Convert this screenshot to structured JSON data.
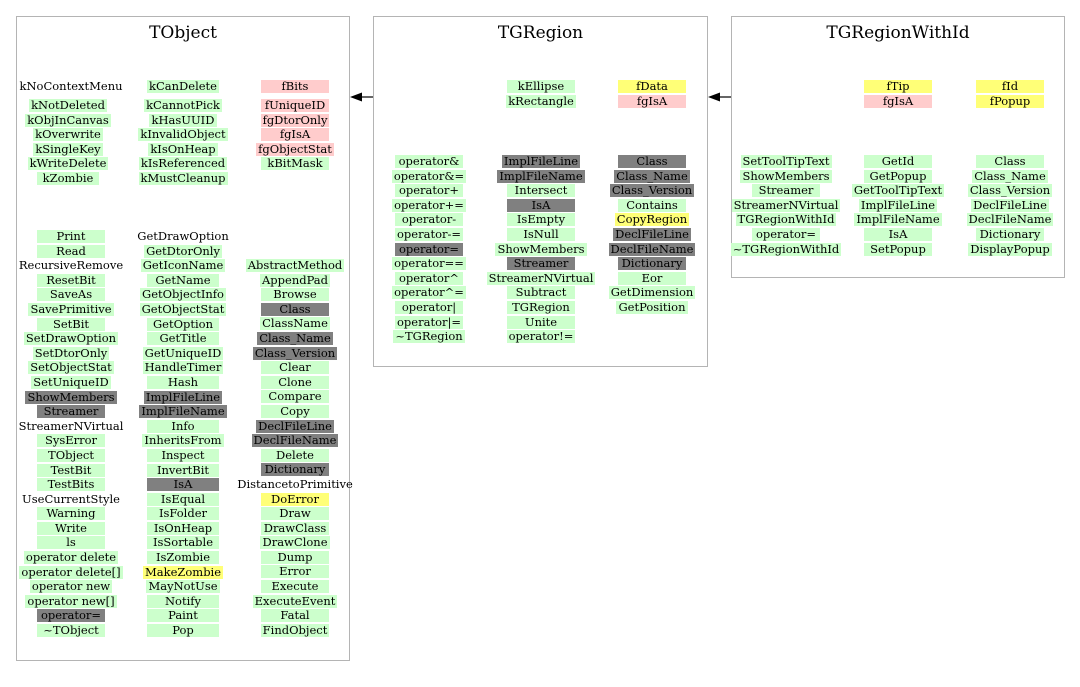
{
  "panels": [
    {
      "title": "TObject",
      "columns": [
        {
          "width": 68,
          "items": [
            {
              "t": "kNoContextMenu",
              "c": "none"
            }
          ]
        },
        {
          "width": 62,
          "items": [
            {
              "t": "kNotDeleted",
              "c": "green"
            },
            {
              "t": "kObjInCanvas",
              "c": "green"
            },
            {
              "t": "kOverwrite",
              "c": "green"
            },
            {
              "t": "kSingleKey",
              "c": "green"
            },
            {
              "t": "kWriteDelete",
              "c": "green"
            },
            {
              "t": "kZombie",
              "c": "green"
            }
          ]
        },
        {
          "width": 68,
          "items": [
            {
              "t": "Print",
              "c": "green"
            },
            {
              "t": "Read",
              "c": "green"
            },
            {
              "t": "RecursiveRemove",
              "c": "none"
            },
            {
              "t": "ResetBit",
              "c": "green"
            },
            {
              "t": "SaveAs",
              "c": "green"
            },
            {
              "t": "SavePrimitive",
              "c": "green"
            },
            {
              "t": "SetBit",
              "c": "green"
            },
            {
              "t": "SetDrawOption",
              "c": "green"
            },
            {
              "t": "SetDtorOnly",
              "c": "green"
            },
            {
              "t": "SetObjectStat",
              "c": "green"
            },
            {
              "t": "SetUniqueID",
              "c": "green"
            },
            {
              "t": "ShowMembers",
              "c": "gray"
            },
            {
              "t": "Streamer",
              "c": "gray"
            },
            {
              "t": "StreamerNVirtual",
              "c": "none"
            },
            {
              "t": "SysError",
              "c": "green"
            },
            {
              "t": "TObject",
              "c": "green"
            },
            {
              "t": "TestBit",
              "c": "green"
            },
            {
              "t": "TestBits",
              "c": "green"
            },
            {
              "t": "UseCurrentStyle",
              "c": "none"
            },
            {
              "t": "Warning",
              "c": "green"
            },
            {
              "t": "Write",
              "c": "green"
            },
            {
              "t": "ls",
              "c": "green"
            },
            {
              "t": "operator delete",
              "c": "green"
            },
            {
              "t": "operator delete[]",
              "c": "green"
            },
            {
              "t": "operator new",
              "c": "green"
            },
            {
              "t": "operator new[]",
              "c": "green"
            },
            {
              "t": "operator=",
              "c": "gray"
            },
            {
              "t": "~TObject",
              "c": "green"
            }
          ]
        },
        {
          "width": 68,
          "items": [
            {
              "t": "kCanDelete",
              "c": "green"
            }
          ]
        },
        {
          "width": 68,
          "items": [
            {
              "t": "kCannotPick",
              "c": "green"
            },
            {
              "t": "kHasUUID",
              "c": "green"
            },
            {
              "t": "kInvalidObject",
              "c": "green"
            },
            {
              "t": "kIsOnHeap",
              "c": "green"
            },
            {
              "t": "kIsReferenced",
              "c": "green"
            },
            {
              "t": "kMustCleanup",
              "c": "green"
            }
          ]
        },
        {
          "width": 72,
          "items": [
            {
              "t": "GetDrawOption",
              "c": "none"
            },
            {
              "t": "GetDtorOnly",
              "c": "green"
            },
            {
              "t": "GetIconName",
              "c": "green"
            },
            {
              "t": "GetName",
              "c": "green"
            },
            {
              "t": "GetObjectInfo",
              "c": "green"
            },
            {
              "t": "GetObjectStat",
              "c": "green"
            },
            {
              "t": "GetOption",
              "c": "green"
            },
            {
              "t": "GetTitle",
              "c": "green"
            },
            {
              "t": "GetUniqueID",
              "c": "green"
            },
            {
              "t": "HandleTimer",
              "c": "green"
            },
            {
              "t": "Hash",
              "c": "green"
            },
            {
              "t": "ImplFileLine",
              "c": "gray"
            },
            {
              "t": "ImplFileName",
              "c": "gray"
            },
            {
              "t": "Info",
              "c": "green"
            },
            {
              "t": "InheritsFrom",
              "c": "green"
            },
            {
              "t": "Inspect",
              "c": "green"
            },
            {
              "t": "InvertBit",
              "c": "green"
            },
            {
              "t": "IsA",
              "c": "gray"
            },
            {
              "t": "IsEqual",
              "c": "green"
            },
            {
              "t": "IsFolder",
              "c": "green"
            },
            {
              "t": "IsOnHeap",
              "c": "green"
            },
            {
              "t": "IsSortable",
              "c": "green"
            },
            {
              "t": "IsZombie",
              "c": "green"
            },
            {
              "t": "MakeZombie",
              "c": "yellow"
            },
            {
              "t": "MayNotUse",
              "c": "green"
            },
            {
              "t": "Notify",
              "c": "green"
            },
            {
              "t": "Paint",
              "c": "green"
            },
            {
              "t": "Pop",
              "c": "green"
            }
          ]
        },
        {
          "width": 68,
          "items": [
            {
              "t": "fBits",
              "c": "pink"
            }
          ]
        },
        {
          "width": 68,
          "items": [
            {
              "t": "fUniqueID",
              "c": "pink"
            },
            {
              "t": "fgDtorOnly",
              "c": "pink"
            },
            {
              "t": "fgIsA",
              "c": "pink"
            },
            {
              "t": "fgObjectStat",
              "c": "pink"
            },
            {
              "t": "kBitMask",
              "c": "green"
            }
          ]
        },
        {
          "width": 68,
          "items": [
            {
              "t": "AbstractMethod",
              "c": "green"
            },
            {
              "t": "AppendPad",
              "c": "green"
            },
            {
              "t": "Browse",
              "c": "green"
            },
            {
              "t": "Class",
              "c": "gray"
            },
            {
              "t": "ClassName",
              "c": "green"
            },
            {
              "t": "Class_Name",
              "c": "gray"
            },
            {
              "t": "Class_Version",
              "c": "gray"
            },
            {
              "t": "Clear",
              "c": "green"
            },
            {
              "t": "Clone",
              "c": "green"
            },
            {
              "t": "Compare",
              "c": "green"
            },
            {
              "t": "Copy",
              "c": "green"
            },
            {
              "t": "DeclFileLine",
              "c": "gray"
            },
            {
              "t": "DeclFileName",
              "c": "gray"
            },
            {
              "t": "Delete",
              "c": "green"
            },
            {
              "t": "Dictionary",
              "c": "gray"
            },
            {
              "t": "DistancetoPrimitive",
              "c": "none"
            },
            {
              "t": "DoError",
              "c": "yellow"
            },
            {
              "t": "Draw",
              "c": "green"
            },
            {
              "t": "DrawClass",
              "c": "green"
            },
            {
              "t": "DrawClone",
              "c": "green"
            },
            {
              "t": "Dump",
              "c": "green"
            },
            {
              "t": "Error",
              "c": "green"
            },
            {
              "t": "Execute",
              "c": "green"
            },
            {
              "t": "ExecuteEvent",
              "c": "green"
            },
            {
              "t": "Fatal",
              "c": "green"
            },
            {
              "t": "FindObject",
              "c": "green"
            }
          ]
        }
      ]
    },
    {
      "title": "TGRegion",
      "columns": [
        {
          "width": 68,
          "items": [
            {
              "t": "operator&",
              "c": "green"
            },
            {
              "t": "operator&=",
              "c": "green"
            },
            {
              "t": "operator+",
              "c": "green"
            },
            {
              "t": "operator+=",
              "c": "green"
            },
            {
              "t": "operator-",
              "c": "green"
            },
            {
              "t": "operator-=",
              "c": "green"
            },
            {
              "t": "operator=",
              "c": "gray"
            },
            {
              "t": "operator==",
              "c": "green"
            },
            {
              "t": "operator^",
              "c": "green"
            },
            {
              "t": "operator^=",
              "c": "green"
            },
            {
              "t": "operator|",
              "c": "green"
            },
            {
              "t": "operator|=",
              "c": "green"
            },
            {
              "t": "~TGRegion",
              "c": "green"
            }
          ]
        },
        {
          "width": 68,
          "items": [
            {
              "t": "kEllipse",
              "c": "green"
            },
            {
              "t": "kRectangle",
              "c": "green"
            }
          ]
        },
        {
          "width": 68,
          "items": [
            {
              "t": "ImplFileLine",
              "c": "gray"
            },
            {
              "t": "ImplFileName",
              "c": "gray"
            },
            {
              "t": "Intersect",
              "c": "green"
            },
            {
              "t": "IsA",
              "c": "gray"
            },
            {
              "t": "IsEmpty",
              "c": "green"
            },
            {
              "t": "IsNull",
              "c": "green"
            },
            {
              "t": "ShowMembers",
              "c": "green"
            },
            {
              "t": "Streamer",
              "c": "gray"
            },
            {
              "t": "StreamerNVirtual",
              "c": "green"
            },
            {
              "t": "Subtract",
              "c": "green"
            },
            {
              "t": "TGRegion",
              "c": "green"
            },
            {
              "t": "Unite",
              "c": "green"
            },
            {
              "t": "operator!=",
              "c": "green"
            }
          ]
        },
        {
          "width": 68,
          "items": [
            {
              "t": "fData",
              "c": "yellow"
            },
            {
              "t": "fgIsA",
              "c": "pink"
            }
          ]
        },
        {
          "width": 68,
          "items": [
            {
              "t": "Class",
              "c": "gray"
            },
            {
              "t": "Class_Name",
              "c": "gray"
            },
            {
              "t": "Class_Version",
              "c": "gray"
            },
            {
              "t": "Contains",
              "c": "green"
            },
            {
              "t": "CopyRegion",
              "c": "yellow"
            },
            {
              "t": "DeclFileLine",
              "c": "gray"
            },
            {
              "t": "DeclFileName",
              "c": "gray"
            },
            {
              "t": "Dictionary",
              "c": "gray"
            },
            {
              "t": "Eor",
              "c": "green"
            },
            {
              "t": "GetDimension",
              "c": "green"
            },
            {
              "t": "GetPosition",
              "c": "green"
            }
          ]
        }
      ]
    },
    {
      "title": "TGRegionWithId",
      "columns": [
        {
          "width": 68,
          "items": [
            {
              "t": "SetToolTipText",
              "c": "green"
            },
            {
              "t": "ShowMembers",
              "c": "green"
            },
            {
              "t": "Streamer",
              "c": "green"
            },
            {
              "t": "StreamerNVirtual",
              "c": "green"
            },
            {
              "t": "TGRegionWithId",
              "c": "green"
            },
            {
              "t": "operator=",
              "c": "green"
            },
            {
              "t": "~TGRegionWithId",
              "c": "green"
            }
          ]
        },
        {
          "width": 68,
          "items": [
            {
              "t": "fTip",
              "c": "yellow"
            },
            {
              "t": "fgIsA",
              "c": "pink"
            }
          ]
        },
        {
          "width": 68,
          "items": [
            {
              "t": "GetId",
              "c": "green"
            },
            {
              "t": "GetPopup",
              "c": "green"
            },
            {
              "t": "GetToolTipText",
              "c": "green"
            },
            {
              "t": "ImplFileLine",
              "c": "green"
            },
            {
              "t": "ImplFileName",
              "c": "green"
            },
            {
              "t": "IsA",
              "c": "green"
            },
            {
              "t": "SetPopup",
              "c": "green"
            }
          ]
        },
        {
          "width": 68,
          "items": [
            {
              "t": "fId",
              "c": "yellow"
            },
            {
              "t": "fPopup",
              "c": "yellow"
            }
          ]
        },
        {
          "width": 68,
          "items": [
            {
              "t": "Class",
              "c": "green"
            },
            {
              "t": "Class_Name",
              "c": "green"
            },
            {
              "t": "Class_Version",
              "c": "green"
            },
            {
              "t": "DeclFileLine",
              "c": "green"
            },
            {
              "t": "DeclFileName",
              "c": "green"
            },
            {
              "t": "Dictionary",
              "c": "green"
            },
            {
              "t": "DisplayPopup",
              "c": "green"
            }
          ]
        }
      ]
    }
  ],
  "colors": {
    "green": "#ccffcc",
    "gray": "#808080",
    "yellow": "#ffff77",
    "pink": "#ffcccc",
    "border": "#b4b4b4",
    "arrow": "#000000"
  }
}
